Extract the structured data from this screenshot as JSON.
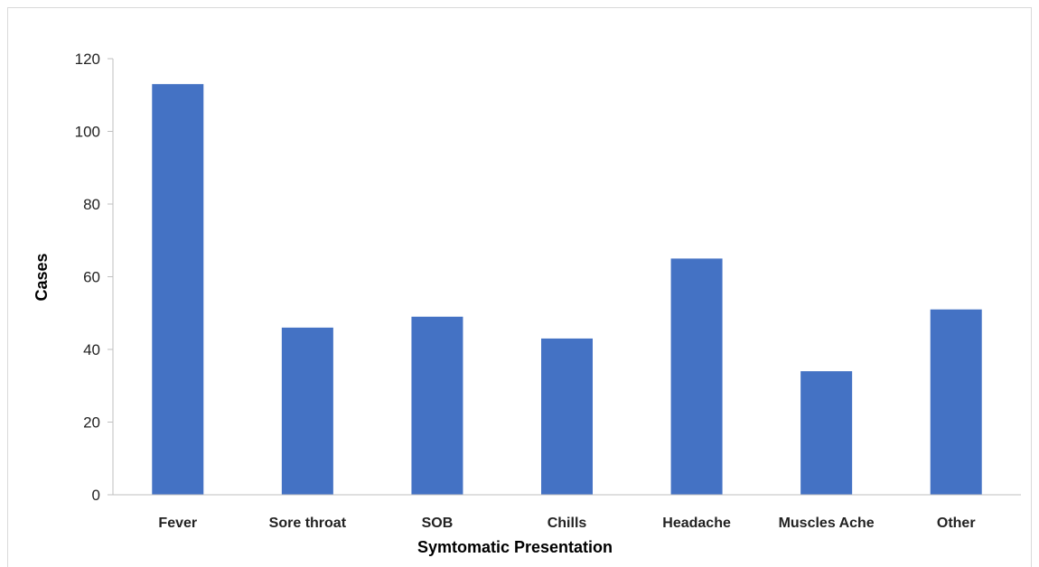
{
  "chart_data": {
    "type": "bar",
    "title": "",
    "xlabel": "Symtomatic Presentation",
    "ylabel": "Cases",
    "categories": [
      "Fever",
      "Sore throat",
      "SOB",
      "Chills",
      "Headache",
      "Muscles Ache",
      "Other"
    ],
    "values": [
      113,
      46,
      49,
      43,
      65,
      34,
      51
    ],
    "ylim": [
      0,
      120
    ],
    "yticks": [
      0,
      20,
      40,
      60,
      80,
      100,
      120
    ],
    "bar_color": "#4472c4",
    "grid": false,
    "legend": "none"
  }
}
